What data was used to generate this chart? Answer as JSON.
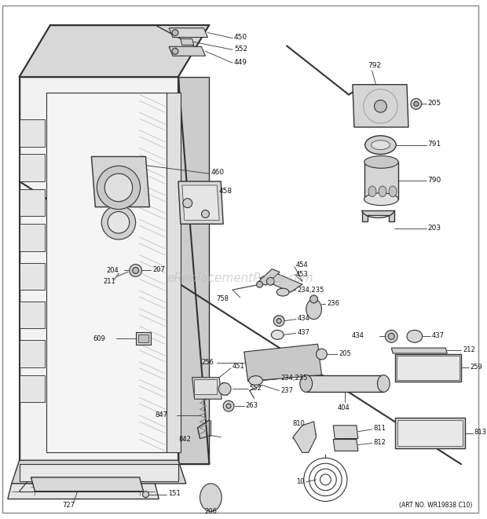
{
  "bg_color": "#ffffff",
  "line_color": "#333333",
  "label_color": "#111111",
  "watermark": "eReplacementParts.com",
  "art_no": "(ART NO. WR19838 C10)",
  "figsize": [
    6.2,
    6.61
  ],
  "dpi": 100
}
